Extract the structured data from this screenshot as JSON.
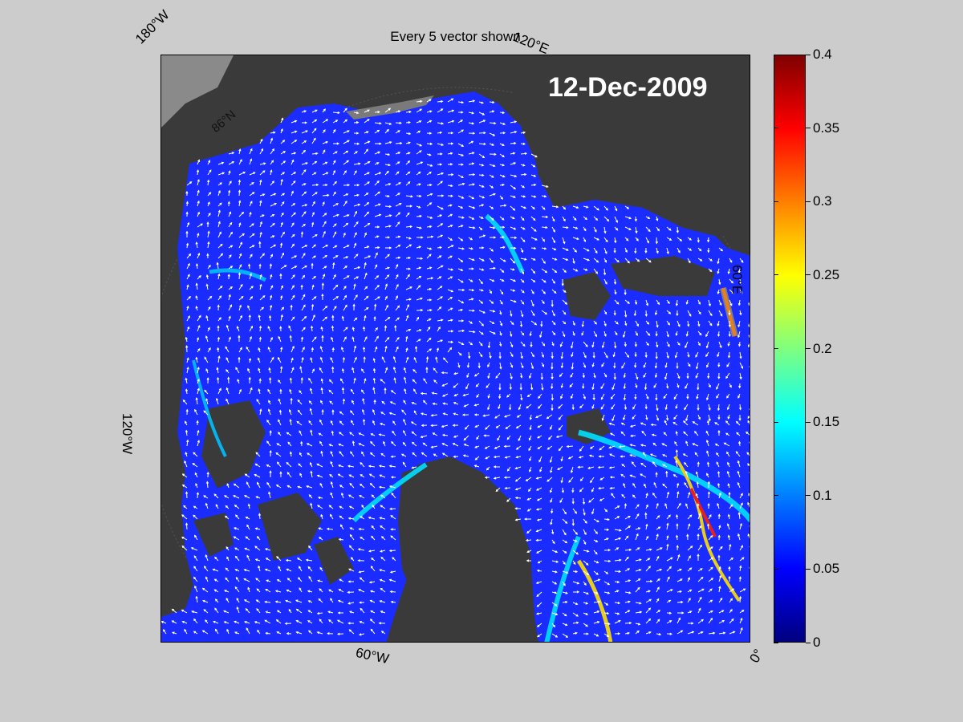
{
  "figure": {
    "title": "Every 5 vector shown",
    "date": "12-Dec-2009"
  },
  "map": {
    "projection": "polar-stereographic",
    "longitude_labels": {
      "lon_180w": "180°W",
      "lon_120e": "120°E",
      "lon_60e": "60°E",
      "lon_120w": "120°W",
      "lon_60w": "60°W",
      "lon_0": "0°"
    },
    "latitude_label": "86°N",
    "colors": {
      "ocean_low": "#1a28ff",
      "land": "#3a3a3a",
      "land_light": "#8a8a8a",
      "vectors": "#ffffff",
      "background": "#cccccc"
    }
  },
  "colorbar": {
    "min": 0,
    "max": 0.4,
    "colormap": "jet",
    "ticks": [
      {
        "value": 0,
        "label": "0"
      },
      {
        "value": 0.05,
        "label": "0.05"
      },
      {
        "value": 0.1,
        "label": "0.1"
      },
      {
        "value": 0.15,
        "label": "0.15"
      },
      {
        "value": 0.2,
        "label": "0.2"
      },
      {
        "value": 0.25,
        "label": "0.25"
      },
      {
        "value": 0.3,
        "label": "0.3"
      },
      {
        "value": 0.35,
        "label": "0.35"
      },
      {
        "value": 0.4,
        "label": "0.4"
      }
    ]
  }
}
